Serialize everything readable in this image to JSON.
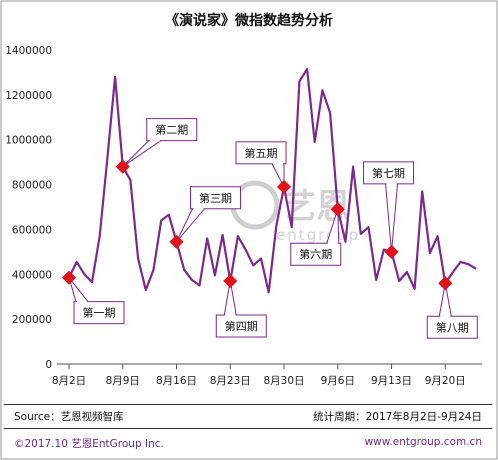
{
  "title": "《演说家》微指数趋势分析",
  "watermark": {
    "cn": "艺恩",
    "en": "entgroup"
  },
  "footer": {
    "source": "Source：艺恩视频智库",
    "period": "统计周期：2017年8月2日-9月24日",
    "copyright": "©2017.10  艺恩EntGroup Inc.",
    "website": "www.entgroup.com.cn"
  },
  "colors": {
    "line": "#7b2a8b",
    "marker": "#e0121b",
    "callout_border": "#7b2a8b",
    "copyright": "#6b2a85"
  },
  "chart_data": {
    "type": "line",
    "title": "《演说家》微指数趋势分析",
    "ylim": [
      0,
      1400000
    ],
    "yticks": [
      0,
      200000,
      400000,
      600000,
      800000,
      1000000,
      1200000,
      1400000
    ],
    "ytick_labels": [
      "0",
      "200000",
      "400000",
      "600000",
      "800000",
      "1000000",
      "1200000",
      "1400000"
    ],
    "xticks": [
      {
        "index": 0,
        "label": "8月2日"
      },
      {
        "index": 7,
        "label": "8月9日"
      },
      {
        "index": 14,
        "label": "8月16日"
      },
      {
        "index": 21,
        "label": "8月23日"
      },
      {
        "index": 28,
        "label": "8月30日"
      },
      {
        "index": 35,
        "label": "9月6日"
      },
      {
        "index": 42,
        "label": "9月13日"
      },
      {
        "index": 49,
        "label": "9月20日"
      }
    ],
    "grid": false,
    "series": [
      {
        "values": [
          385000,
          455000,
          400000,
          365000,
          570000,
          920000,
          1280000,
          880000,
          820000,
          470000,
          330000,
          420000,
          640000,
          665000,
          545000,
          420000,
          375000,
          350000,
          560000,
          395000,
          575000,
          370000,
          570000,
          510000,
          440000,
          470000,
          320000,
          615000,
          790000,
          610000,
          1260000,
          1315000,
          990000,
          1220000,
          1120000,
          690000,
          545000,
          880000,
          580000,
          610000,
          375000,
          510000,
          500000,
          370000,
          410000,
          335000,
          770000,
          495000,
          570000,
          360000,
          410000,
          455000,
          445000,
          425000
        ]
      }
    ],
    "annotations": [
      {
        "label": "第一期",
        "index": 0,
        "value": 385000
      },
      {
        "label": "第二期",
        "index": 7,
        "value": 880000
      },
      {
        "label": "第三期",
        "index": 14,
        "value": 545000
      },
      {
        "label": "第四期",
        "index": 21,
        "value": 370000
      },
      {
        "label": "第五期",
        "index": 28,
        "value": 790000
      },
      {
        "label": "第六期",
        "index": 35,
        "value": 690000
      },
      {
        "label": "第七期",
        "index": 42,
        "value": 500000
      },
      {
        "label": "第八期",
        "index": 49,
        "value": 360000
      }
    ]
  }
}
